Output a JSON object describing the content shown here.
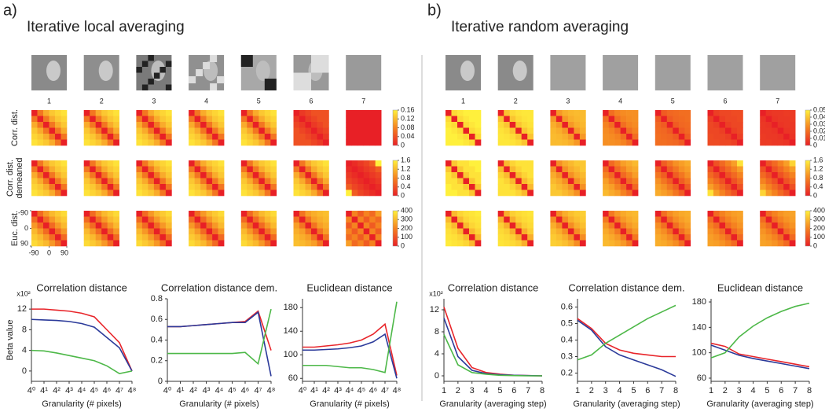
{
  "panels": [
    {
      "label": "a)",
      "title": "Iterative local averaging",
      "image_numbers": [
        "1",
        "2",
        "3",
        "4",
        "5",
        "6",
        "7"
      ],
      "matrix_ticks": [
        -90,
        0,
        90
      ],
      "rows": [
        {
          "label_lines": [
            "Corr. dist."
          ],
          "colorbar_lim": [
            0,
            0.16
          ],
          "colorbar_ticks": [
            0,
            0.04,
            0.08,
            0.12,
            0.16
          ],
          "matrices": [
            [
              0,
              0.07,
              0.11,
              0.13,
              0.14,
              0.15
            ],
            [
              0,
              0.07,
              0.11,
              0.13,
              0.14,
              0.15
            ],
            [
              0,
              0.07,
              0.11,
              0.13,
              0.14,
              0.15
            ],
            [
              0,
              0.07,
              0.11,
              0.13,
              0.14,
              0.15
            ],
            [
              0,
              0.07,
              0.11,
              0.13,
              0.14,
              0.15
            ],
            [
              0,
              0.02,
              0.03,
              0.04,
              0.04,
              0.04
            ],
            [
              0,
              0,
              0,
              0,
              0,
              0
            ]
          ]
        },
        {
          "label_lines": [
            "Corr. dist.",
            "demeaned"
          ],
          "colorbar_lim": [
            0,
            1.6
          ],
          "colorbar_ticks": [
            0,
            0.4,
            0.8,
            1.2,
            1.6
          ],
          "matrices": [
            [
              0,
              0.7,
              1.1,
              1.3,
              1.4,
              1.5
            ],
            [
              0,
              0.7,
              1.1,
              1.3,
              1.4,
              1.5
            ],
            [
              0,
              0.7,
              1.1,
              1.3,
              1.4,
              1.5
            ],
            [
              0,
              0.7,
              1.1,
              1.3,
              1.4,
              1.5
            ],
            [
              0,
              0.7,
              1.1,
              1.3,
              1.4,
              1.5
            ],
            [
              0,
              0.7,
              1.1,
              1.3,
              1.4,
              1.5
            ],
            [
              0,
              0.1,
              0.2,
              0.3,
              0.5,
              1.6
            ]
          ]
        },
        {
          "label_lines": [
            "Euc. dist."
          ],
          "colorbar_lim": [
            0,
            400
          ],
          "colorbar_ticks": [
            0,
            100,
            200,
            300,
            400
          ],
          "matrices": [
            [
              0,
              150,
              240,
              300,
              330,
              360
            ],
            [
              0,
              150,
              240,
              300,
              330,
              360
            ],
            [
              0,
              150,
              240,
              300,
              330,
              360
            ],
            [
              0,
              150,
              240,
              300,
              330,
              360
            ],
            [
              0,
              150,
              240,
              300,
              330,
              360
            ],
            [
              0,
              170,
              250,
              280,
              300,
              310
            ],
            [
              0,
              200,
              120,
              200,
              150,
              250
            ]
          ]
        }
      ]
    },
    {
      "label": "b)",
      "title": "Iterative random averaging",
      "image_numbers": [
        "1",
        "2",
        "3",
        "4",
        "5",
        "6",
        "7"
      ],
      "rows": [
        {
          "colorbar_lim": [
            0,
            0.05
          ],
          "colorbar_ticks": [
            0,
            0.01,
            0.02,
            0.03,
            0.04,
            0.05
          ],
          "matrices": [
            [
              0,
              0.045,
              0.048,
              0.05,
              0.05,
              0.05
            ],
            [
              0,
              0.04,
              0.045,
              0.047,
              0.048,
              0.048
            ],
            [
              0,
              0.03,
              0.035,
              0.037,
              0.038,
              0.038
            ],
            [
              0,
              0.02,
              0.025,
              0.027,
              0.028,
              0.028
            ],
            [
              0,
              0.015,
              0.018,
              0.019,
              0.02,
              0.02
            ],
            [
              0,
              0.008,
              0.01,
              0.01,
              0.011,
              0.011
            ],
            [
              0,
              0.005,
              0.006,
              0.006,
              0.007,
              0.007
            ]
          ]
        },
        {
          "colorbar_lim": [
            0,
            1.6
          ],
          "colorbar_ticks": [
            0,
            0.4,
            0.8,
            1.2,
            1.6
          ],
          "matrices": [
            [
              0,
              1.3,
              1.5,
              1.5,
              1.6,
              1.6
            ],
            [
              0,
              1.2,
              1.4,
              1.5,
              1.5,
              1.5
            ],
            [
              0,
              0.9,
              1.1,
              1.2,
              1.3,
              1.3
            ],
            [
              0,
              0.6,
              0.8,
              1.0,
              1.1,
              1.2
            ],
            [
              0,
              0.5,
              0.7,
              0.9,
              1.0,
              1.1
            ],
            [
              0,
              0.4,
              0.6,
              0.8,
              1.0,
              1.5
            ],
            [
              0,
              0.4,
              0.6,
              0.8,
              1.0,
              1.4
            ]
          ]
        },
        {
          "colorbar_lim": [
            0,
            400
          ],
          "colorbar_ticks": [
            0,
            100,
            200,
            300,
            400
          ],
          "matrices": [
            [
              0,
              300,
              350,
              370,
              380,
              390
            ],
            [
              0,
              280,
              340,
              360,
              370,
              380
            ],
            [
              0,
              220,
              280,
              310,
              330,
              340
            ],
            [
              0,
              180,
              240,
              270,
              290,
              300
            ],
            [
              0,
              160,
              220,
              250,
              270,
              280
            ],
            [
              0,
              150,
              200,
              230,
              250,
              260
            ],
            [
              0,
              150,
              200,
              230,
              250,
              260
            ]
          ]
        }
      ]
    }
  ],
  "chart_data": [
    {
      "type": "line",
      "title": "Correlation distance",
      "xlabel": "Granularity (# pixels)",
      "ylabel": "Beta value",
      "y_multiplier": "x10²",
      "x": [
        0,
        1,
        2,
        3,
        4,
        5,
        6,
        7,
        8
      ],
      "xlim": [
        0,
        8
      ],
      "xticks": [
        {
          "value": 0,
          "label": "4⁰"
        },
        {
          "value": 1,
          "label": "4¹"
        },
        {
          "value": 2,
          "label": "4²"
        },
        {
          "value": 3,
          "label": "4³"
        },
        {
          "value": 4,
          "label": "4⁴"
        },
        {
          "value": 5,
          "label": "4⁵"
        },
        {
          "value": 6,
          "label": "4⁶"
        },
        {
          "value": 7,
          "label": "4⁷"
        },
        {
          "value": 8,
          "label": "4⁸"
        }
      ],
      "ylim": [
        -2,
        14
      ],
      "yticks": [
        0,
        4,
        8,
        12
      ],
      "series": [
        {
          "color": "#e8252a",
          "values": [
            12,
            12,
            11.8,
            11.6,
            11.2,
            10.5,
            8,
            5.5,
            0
          ]
        },
        {
          "color": "#2b3a9a",
          "values": [
            10,
            9.9,
            9.8,
            9.6,
            9.2,
            8.5,
            6.5,
            4.5,
            0
          ]
        },
        {
          "color": "#4db848",
          "values": [
            4,
            3.9,
            3.5,
            3,
            2.5,
            2,
            1,
            -0.5,
            0
          ]
        }
      ]
    },
    {
      "type": "line",
      "title": "Correlation distance dem.",
      "xlabel": "Granularity (# pixels)",
      "x": [
        0,
        1,
        2,
        3,
        4,
        5,
        6,
        7,
        8
      ],
      "xlim": [
        0,
        8
      ],
      "xticks": [
        {
          "value": 0,
          "label": "4⁰"
        },
        {
          "value": 1,
          "label": "4¹"
        },
        {
          "value": 2,
          "label": "4²"
        },
        {
          "value": 3,
          "label": "4³"
        },
        {
          "value": 4,
          "label": "4⁴"
        },
        {
          "value": 5,
          "label": "4⁵"
        },
        {
          "value": 6,
          "label": "4⁶"
        },
        {
          "value": 7,
          "label": "4⁷"
        },
        {
          "value": 8,
          "label": "4⁸"
        }
      ],
      "ylim": [
        0,
        0.8
      ],
      "yticks": [
        0,
        0.2,
        0.4,
        0.6,
        0.8
      ],
      "series": [
        {
          "color": "#e8252a",
          "values": [
            0.53,
            0.53,
            0.54,
            0.55,
            0.56,
            0.57,
            0.58,
            0.68,
            0.3
          ]
        },
        {
          "color": "#2b3a9a",
          "values": [
            0.53,
            0.53,
            0.54,
            0.55,
            0.56,
            0.57,
            0.57,
            0.67,
            0.05
          ]
        },
        {
          "color": "#4db848",
          "values": [
            0.27,
            0.27,
            0.27,
            0.27,
            0.27,
            0.27,
            0.28,
            0.17,
            0.7
          ]
        }
      ]
    },
    {
      "type": "line",
      "title": "Euclidean distance",
      "xlabel": "Granularity (# pixels)",
      "x": [
        0,
        1,
        2,
        3,
        4,
        5,
        6,
        7,
        8
      ],
      "xlim": [
        0,
        8
      ],
      "xticks": [
        {
          "value": 0,
          "label": "4⁰"
        },
        {
          "value": 1,
          "label": "4¹"
        },
        {
          "value": 2,
          "label": "4²"
        },
        {
          "value": 3,
          "label": "4³"
        },
        {
          "value": 4,
          "label": "4⁴"
        },
        {
          "value": 5,
          "label": "4⁵"
        },
        {
          "value": 6,
          "label": "4⁶"
        },
        {
          "value": 7,
          "label": "4⁷"
        },
        {
          "value": 8,
          "label": "4⁸"
        }
      ],
      "ylim": [
        55,
        195
      ],
      "yticks": [
        60,
        100,
        140,
        180
      ],
      "series": [
        {
          "color": "#e8252a",
          "values": [
            113,
            113,
            115,
            117,
            120,
            125,
            135,
            152,
            65
          ]
        },
        {
          "color": "#2b3a9a",
          "values": [
            108,
            108,
            109,
            110,
            112,
            115,
            122,
            135,
            60
          ]
        },
        {
          "color": "#4db848",
          "values": [
            82,
            82,
            82,
            80,
            78,
            78,
            75,
            70,
            190
          ]
        }
      ]
    },
    {
      "type": "line",
      "title": "Correlation distance",
      "xlabel": "Granularity (averaging step)",
      "y_multiplier": "x10²",
      "x": [
        1,
        2,
        3,
        4,
        5,
        6,
        7,
        8
      ],
      "xlim": [
        1,
        8
      ],
      "xticks": [
        1,
        2,
        3,
        4,
        5,
        6,
        7,
        8
      ],
      "ylim": [
        -1,
        14
      ],
      "yticks": [
        0,
        4,
        8,
        12
      ],
      "series": [
        {
          "color": "#e8252a",
          "values": [
            12.5,
            5,
            1.5,
            0.6,
            0.3,
            0.1,
            0.05,
            0
          ]
        },
        {
          "color": "#2b3a9a",
          "values": [
            10.5,
            3.5,
            1,
            0.4,
            0.2,
            0.1,
            0.05,
            0
          ]
        },
        {
          "color": "#4db848",
          "values": [
            7.5,
            2,
            0.6,
            0.3,
            0.1,
            0.05,
            0,
            0
          ]
        }
      ]
    },
    {
      "type": "line",
      "title": "Correlation distance dem.",
      "xlabel": "Granularity (averaging step)",
      "x": [
        1,
        2,
        3,
        4,
        5,
        6,
        7,
        8
      ],
      "xlim": [
        1,
        8
      ],
      "xticks": [
        1,
        2,
        3,
        4,
        5,
        6,
        7,
        8
      ],
      "ylim": [
        0.15,
        0.65
      ],
      "yticks": [
        0.2,
        0.3,
        0.4,
        0.5,
        0.6
      ],
      "series": [
        {
          "color": "#e8252a",
          "values": [
            0.53,
            0.47,
            0.38,
            0.34,
            0.32,
            0.31,
            0.3,
            0.3
          ]
        },
        {
          "color": "#2b3a9a",
          "values": [
            0.52,
            0.46,
            0.36,
            0.31,
            0.28,
            0.25,
            0.22,
            0.18
          ]
        },
        {
          "color": "#4db848",
          "values": [
            0.28,
            0.31,
            0.38,
            0.43,
            0.48,
            0.53,
            0.57,
            0.61
          ]
        }
      ]
    },
    {
      "type": "line",
      "title": "Euclidean distance",
      "xlabel": "Granularity (averaging step)",
      "x": [
        1,
        2,
        3,
        4,
        5,
        6,
        7,
        8
      ],
      "xlim": [
        1,
        8
      ],
      "xticks": [
        1,
        2,
        3,
        4,
        5,
        6,
        7,
        8
      ],
      "ylim": [
        55,
        185
      ],
      "yticks": [
        60,
        100,
        140,
        180
      ],
      "series": [
        {
          "color": "#e8252a",
          "values": [
            115,
            110,
            98,
            94,
            90,
            86,
            82,
            78
          ]
        },
        {
          "color": "#2b3a9a",
          "values": [
            112,
            104,
            96,
            91,
            87,
            83,
            79,
            75
          ]
        },
        {
          "color": "#4db848",
          "values": [
            92,
            100,
            125,
            142,
            155,
            165,
            173,
            178
          ]
        }
      ]
    }
  ]
}
